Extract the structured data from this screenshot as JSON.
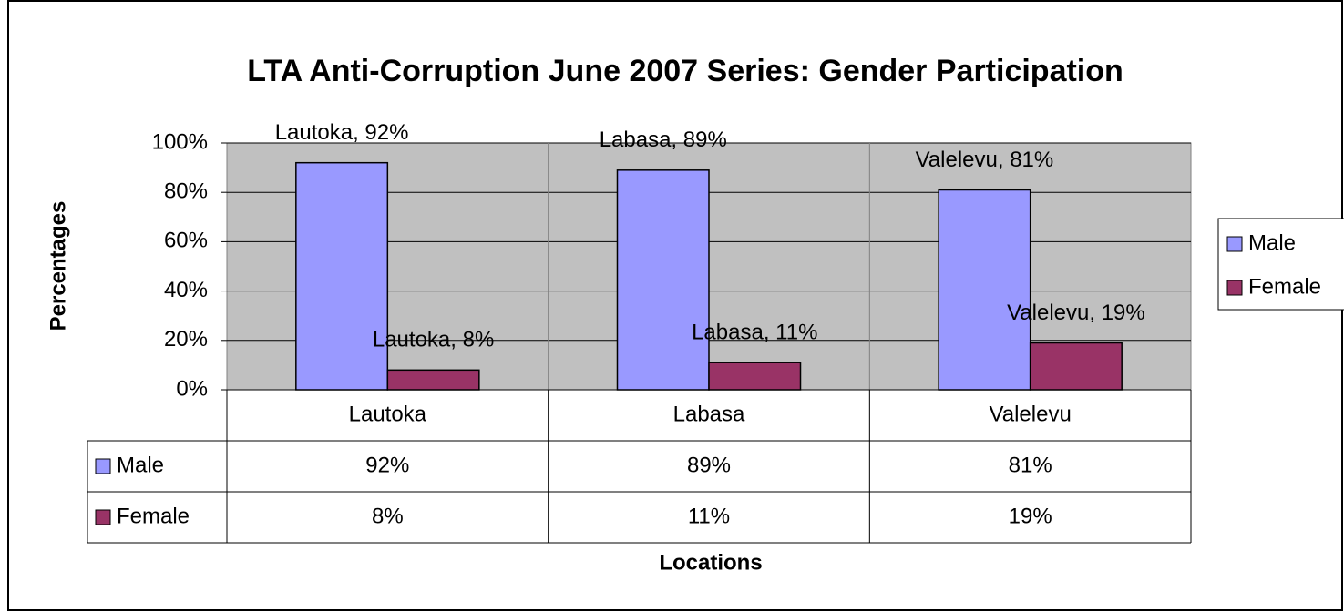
{
  "chart_data": {
    "type": "bar",
    "title": "LTA Anti-Corruption June 2007 Series: Gender Participation",
    "x_label": "Locations",
    "y_label": "Percentages",
    "categories": [
      "Lautoka",
      "Labasa",
      "Valelevu"
    ],
    "series": [
      {
        "name": "Male",
        "color": "#9999ff",
        "values": [
          92,
          89,
          81
        ],
        "value_labels": [
          "Lautoka, 92%",
          "Labasa, 89%",
          "Valelevu, 81%"
        ],
        "table_labels": [
          "92%",
          "89%",
          "81%"
        ]
      },
      {
        "name": "Female",
        "color": "#993366",
        "values": [
          8,
          11,
          19
        ],
        "value_labels": [
          "Lautoka, 8%",
          "Labasa, 11%",
          "Valelevu, 19%"
        ],
        "table_labels": [
          "8%",
          "11%",
          "19%"
        ]
      }
    ],
    "ylim": [
      0,
      100
    ],
    "yticks": [
      {
        "value": 0,
        "label": "0%"
      },
      {
        "value": 20,
        "label": "20%"
      },
      {
        "value": 40,
        "label": "40%"
      },
      {
        "value": 60,
        "label": "60%"
      },
      {
        "value": 80,
        "label": "80%"
      },
      {
        "value": 100,
        "label": "100%"
      }
    ],
    "grid": true,
    "plot_background": "#c0c0c0",
    "legend": "right"
  }
}
